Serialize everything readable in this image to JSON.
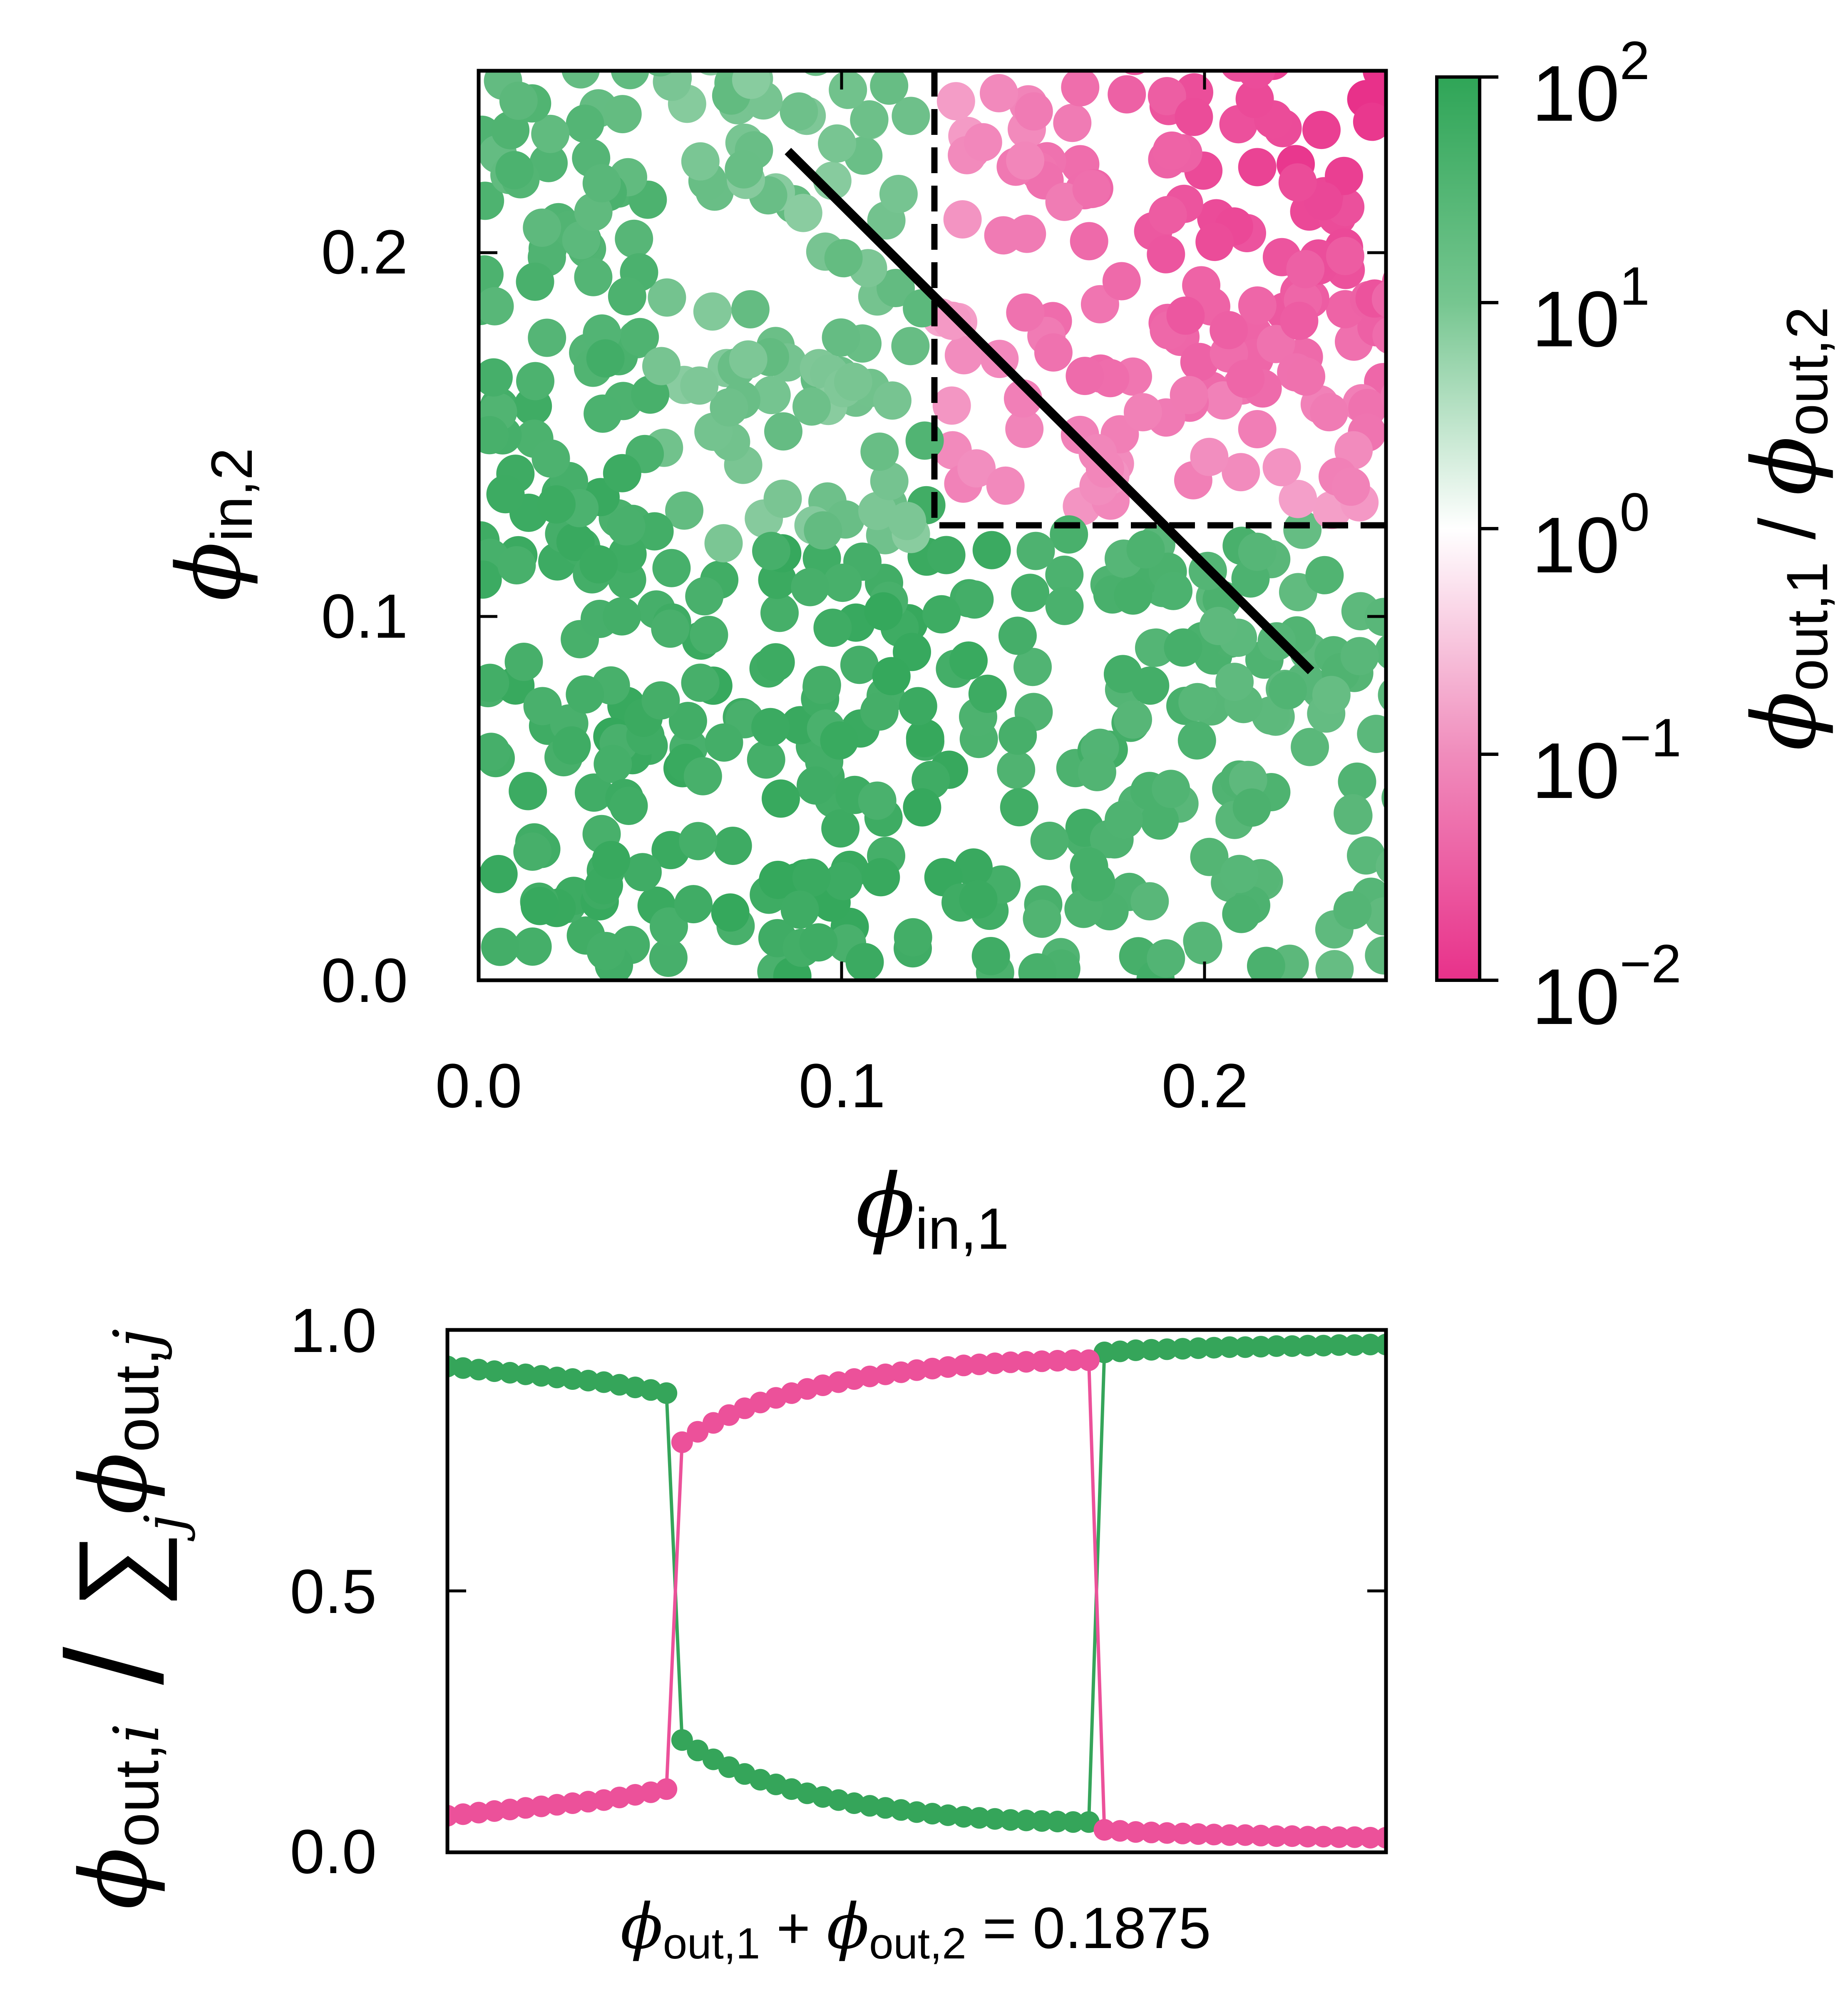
{
  "chart_data": [
    {
      "type": "scatter",
      "xlabel": "ϕin,1",
      "ylabel": "ϕin,2",
      "xlim": [
        0,
        0.25
      ],
      "ylim": [
        0,
        0.25
      ],
      "xticks": [
        "0.0",
        "0.1",
        "0.2"
      ],
      "yticks": [
        "0.0",
        "0.1",
        "0.2"
      ],
      "grid": false,
      "colorbar": {
        "label": "ϕout,1 / ϕout,2",
        "scale": "log",
        "range": [
          0.01,
          100
        ],
        "ticks": [
          "10^2",
          "10^1",
          "10^0",
          "10^-1",
          "10^-2"
        ],
        "colors": {
          "high": "#2fa557",
          "mid": "#ffffff",
          "low": "#e8318a"
        }
      },
      "reference_lines": [
        {
          "style": "solid",
          "x": [
            0.085,
            0.229
          ],
          "y": [
            0.228,
            0.085
          ]
        },
        {
          "style": "dashed",
          "x": [
            0.125,
            0.125,
            0.25
          ],
          "y": [
            0.25,
            0.125,
            0.125
          ]
        }
      ],
      "points_generated": 640,
      "color_rule": "ratio ≈ 10^(0.9 - 22·max(0, min(x-0.125, y-0.125)) + noise)"
    },
    {
      "type": "line",
      "xlabel": "ϕout,1 + ϕout,2 = 0.1875",
      "ylabel": "ϕout,i / Σj ϕout,j",
      "ylim": [
        0,
        1
      ],
      "yticks": [
        "0.0",
        "0.5",
        "1.0"
      ],
      "x": [
        0,
        1,
        2,
        3,
        4,
        5,
        6,
        7,
        8,
        9,
        10,
        11,
        12,
        13,
        14,
        15,
        16,
        17,
        18,
        19,
        20,
        21,
        22,
        23,
        24,
        25,
        26,
        27,
        28,
        29,
        30,
        31,
        32,
        33,
        34,
        35,
        36,
        37,
        38,
        39,
        40,
        41,
        42,
        43,
        44,
        45,
        46,
        47,
        48,
        49,
        50,
        51,
        52,
        53,
        54,
        55,
        56,
        57,
        58,
        59,
        60
      ],
      "series": [
        {
          "color": "#35a55a",
          "values": [
            0.93,
            0.927,
            0.924,
            0.921,
            0.918,
            0.915,
            0.912,
            0.909,
            0.906,
            0.903,
            0.9,
            0.895,
            0.89,
            0.885,
            0.879,
            0.215,
            0.195,
            0.178,
            0.163,
            0.15,
            0.139,
            0.13,
            0.121,
            0.113,
            0.106,
            0.1,
            0.094,
            0.089,
            0.085,
            0.081,
            0.077,
            0.074,
            0.071,
            0.068,
            0.066,
            0.064,
            0.062,
            0.061,
            0.06,
            0.059,
            0.058,
            0.058,
            0.957,
            0.959,
            0.961,
            0.962,
            0.963,
            0.964,
            0.965,
            0.966,
            0.967,
            0.967,
            0.968,
            0.969,
            0.969,
            0.97,
            0.97,
            0.971,
            0.971,
            0.972,
            0.972
          ]
        },
        {
          "color": "#ec519a",
          "values": [
            0.07,
            0.073,
            0.076,
            0.079,
            0.082,
            0.085,
            0.088,
            0.091,
            0.094,
            0.097,
            0.1,
            0.105,
            0.11,
            0.115,
            0.121,
            0.785,
            0.805,
            0.822,
            0.837,
            0.85,
            0.861,
            0.87,
            0.879,
            0.887,
            0.894,
            0.9,
            0.906,
            0.911,
            0.915,
            0.919,
            0.923,
            0.926,
            0.929,
            0.932,
            0.934,
            0.936,
            0.938,
            0.939,
            0.94,
            0.941,
            0.942,
            0.942,
            0.043,
            0.041,
            0.039,
            0.038,
            0.037,
            0.036,
            0.035,
            0.034,
            0.033,
            0.033,
            0.032,
            0.031,
            0.031,
            0.03,
            0.03,
            0.029,
            0.029,
            0.028,
            0.028
          ]
        }
      ]
    }
  ]
}
